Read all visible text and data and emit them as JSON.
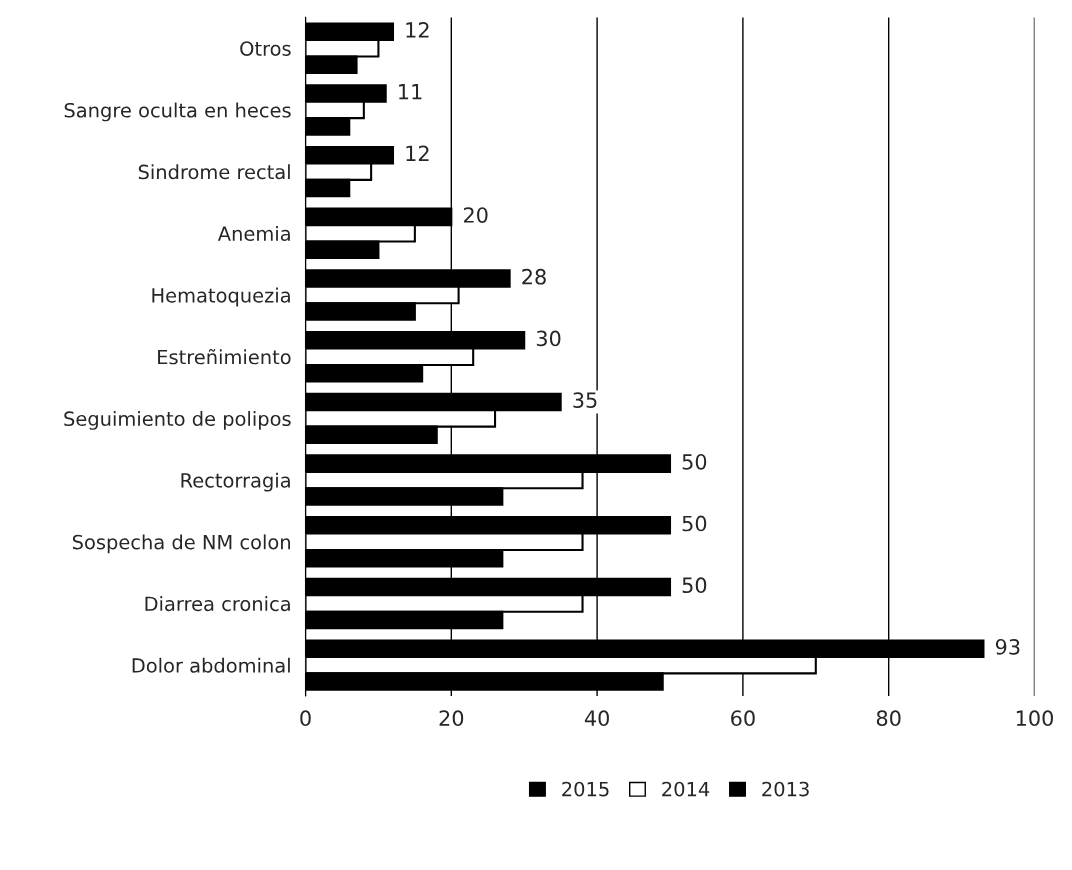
{
  "chart_data": {
    "type": "bar",
    "orientation": "horizontal",
    "categories": [
      "Otros",
      "Sangre oculta en heces",
      "Sindrome rectal",
      "Anemia",
      "Hematoquezia",
      "Estreñimiento",
      "Seguimiento de polipos",
      "Rectorragia",
      "Sospecha de NM colon",
      "Diarrea cronica",
      "Dolor abdominal"
    ],
    "series": [
      {
        "name": "2015",
        "color": "#000000",
        "values": [
          12,
          11,
          12,
          20,
          28,
          30,
          35,
          50,
          50,
          50,
          93
        ],
        "value_labels": [
          "12",
          "11",
          "12",
          "20",
          "28",
          "30",
          "35",
          "50",
          "50",
          "50",
          "93"
        ]
      },
      {
        "name": "2014",
        "color": "#ffffff",
        "values": [
          10,
          8,
          9,
          15,
          21,
          23,
          26,
          38,
          38,
          38,
          70
        ]
      },
      {
        "name": "2013",
        "color": "#000000",
        "values": [
          7,
          6,
          6,
          10,
          15,
          16,
          18,
          27,
          27,
          27,
          49
        ]
      }
    ],
    "xlim": [
      0,
      100
    ],
    "xticks": [
      0,
      20,
      40,
      60,
      80,
      100
    ],
    "grid": "x",
    "legend": "bottom"
  }
}
